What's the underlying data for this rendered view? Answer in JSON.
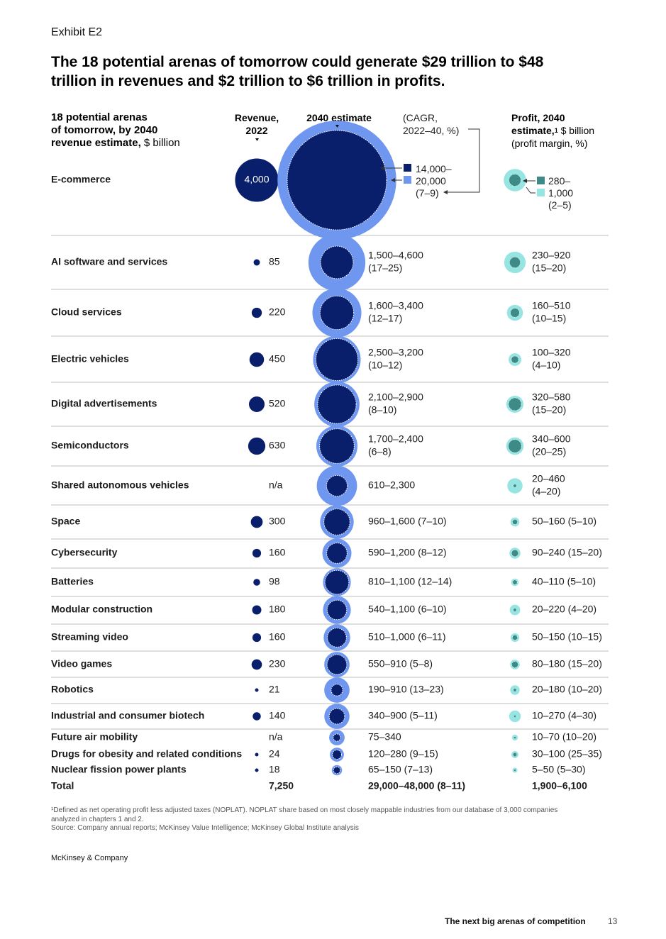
{
  "exhibit_label": "Exhibit E2",
  "title": "The 18 potential arenas of tomorrow could generate $29 trillion to $48 trillion in revenues and $2 trillion to $6 trillion in profits.",
  "header": {
    "arena_line1": "18 potential arenas",
    "arena_line2": "of tomorrow, by 2040",
    "arena_line3_bold": "revenue estimate,",
    "arena_line3_unit": "$ billion",
    "revenue_line1": "Revenue,",
    "revenue_line2": "2022",
    "estimate": "2040 estimate",
    "cagr_line1": "(CAGR,",
    "cagr_line2": "2022–40, %)",
    "profit_line1": "Profit, 2040",
    "profit_line2": "estimate,",
    "profit_sup": "1",
    "profit_unit": "$ billion",
    "profit_line3": "(profit margin, %)"
  },
  "legend": {
    "rev_low": "14,000–",
    "rev_high": "20,000",
    "rev_cagr": "(7–9)",
    "profit_low": "280–",
    "profit_high": "1,000",
    "profit_margin": "(2–5)"
  },
  "colors": {
    "navy": "#0a1f6b",
    "blue": "#6f97f0",
    "teal_dark": "#3e8a87",
    "teal_light": "#96e5e3",
    "rule": "#bdbdbd"
  },
  "chart_data": {
    "type": "bubble-table",
    "title": "The 18 potential arenas of tomorrow could generate $29 trillion to $48 trillion in revenues and $2 trillion to $6 trillion in profits.",
    "columns": [
      "18 potential arenas of tomorrow, by 2040 revenue estimate, $ billion",
      "Revenue, 2022",
      "2040 estimate (CAGR, 2022–40, %)",
      "Profit, 2040 estimate, $ billion (profit margin, %)"
    ],
    "rows": [
      {
        "arena": "E-commerce",
        "revenue_2022": 4000,
        "revenue_2022_label": "4,000",
        "rev_low": 14000,
        "rev_high": 20000,
        "estimate_label": "",
        "profit_low": 280,
        "profit_high": 1000,
        "profit_label": ""
      },
      {
        "arena": "AI software and services",
        "revenue_2022": 85,
        "revenue_2022_label": "85",
        "rev_low": 1500,
        "rev_high": 4600,
        "estimate_label": "1,500–4,600",
        "estimate_label2": "(17–25)",
        "profit_low": 230,
        "profit_high": 920,
        "profit_label": "230–920",
        "profit_label2": "(15–20)"
      },
      {
        "arena": "Cloud services",
        "revenue_2022": 220,
        "revenue_2022_label": "220",
        "rev_low": 1600,
        "rev_high": 3400,
        "estimate_label": "1,600–3,400",
        "estimate_label2": "(12–17)",
        "profit_low": 160,
        "profit_high": 510,
        "profit_label": "160–510",
        "profit_label2": "(10–15)"
      },
      {
        "arena": "Electric vehicles",
        "revenue_2022": 450,
        "revenue_2022_label": "450",
        "rev_low": 2500,
        "rev_high": 3200,
        "estimate_label": "2,500–3,200",
        "estimate_label2": "(10–12)",
        "profit_low": 100,
        "profit_high": 320,
        "profit_label": "100–320",
        "profit_label2": "(4–10)"
      },
      {
        "arena": "Digital advertisements",
        "revenue_2022": 520,
        "revenue_2022_label": "520",
        "rev_low": 2100,
        "rev_high": 2900,
        "estimate_label": "2,100–2,900",
        "estimate_label2": "(8–10)",
        "profit_low": 320,
        "profit_high": 580,
        "profit_label": "320–580",
        "profit_label2": "(15–20)"
      },
      {
        "arena": "Semiconductors",
        "revenue_2022": 630,
        "revenue_2022_label": "630",
        "rev_low": 1700,
        "rev_high": 2400,
        "estimate_label": "1,700–2,400",
        "estimate_label2": "(6–8)",
        "profit_low": 340,
        "profit_high": 600,
        "profit_label": "340–600",
        "profit_label2": "(20–25)"
      },
      {
        "arena": "Shared autonomous vehicles",
        "revenue_2022": null,
        "revenue_2022_label": "n/a",
        "rev_low": 610,
        "rev_high": 2300,
        "estimate_label": "610–2,300",
        "profit_low": 20,
        "profit_high": 460,
        "profit_label": "20–460",
        "profit_label2": "(4–20)"
      },
      {
        "arena": "Space",
        "revenue_2022": 300,
        "revenue_2022_label": "300",
        "rev_low": 960,
        "rev_high": 1600,
        "estimate_label": "960–1,600 (7–10)",
        "profit_low": 50,
        "profit_high": 160,
        "profit_label": "50–160 (5–10)"
      },
      {
        "arena": "Cybersecurity",
        "revenue_2022": 160,
        "revenue_2022_label": "160",
        "rev_low": 590,
        "rev_high": 1200,
        "estimate_label": "590–1,200 (8–12)",
        "profit_low": 90,
        "profit_high": 240,
        "profit_label": "90–240 (15–20)"
      },
      {
        "arena": "Batteries",
        "revenue_2022": 98,
        "revenue_2022_label": "98",
        "rev_low": 810,
        "rev_high": 1100,
        "estimate_label": "810–1,100 (12–14)",
        "profit_low": 40,
        "profit_high": 110,
        "profit_label": "40–110 (5–10)"
      },
      {
        "arena": "Modular construction",
        "revenue_2022": 180,
        "revenue_2022_label": "180",
        "rev_low": 540,
        "rev_high": 1100,
        "estimate_label": "540–1,100 (6–10)",
        "profit_low": 20,
        "profit_high": 220,
        "profit_label": "20–220 (4–20)"
      },
      {
        "arena": "Streaming video",
        "revenue_2022": 160,
        "revenue_2022_label": "160",
        "rev_low": 510,
        "rev_high": 1000,
        "estimate_label": "510–1,000 (6–11)",
        "profit_low": 50,
        "profit_high": 150,
        "profit_label": "50–150 (10–15)"
      },
      {
        "arena": "Video games",
        "revenue_2022": 230,
        "revenue_2022_label": "230",
        "rev_low": 550,
        "rev_high": 910,
        "estimate_label": "550–910 (5–8)",
        "profit_low": 80,
        "profit_high": 180,
        "profit_label": "80–180 (15–20)"
      },
      {
        "arena": "Robotics",
        "revenue_2022": 21,
        "revenue_2022_label": "21",
        "rev_low": 190,
        "rev_high": 910,
        "estimate_label": "190–910 (13–23)",
        "profit_low": 20,
        "profit_high": 180,
        "profit_label": "20–180 (10–20)"
      },
      {
        "arena": "Industrial and consumer biotech",
        "revenue_2022": 140,
        "revenue_2022_label": "140",
        "rev_low": 340,
        "rev_high": 900,
        "estimate_label": "340–900 (5–11)",
        "profit_low": 10,
        "profit_high": 270,
        "profit_label": "10–270 (4–30)"
      },
      {
        "arena": "Future air mobility",
        "revenue_2022": null,
        "revenue_2022_label": "n/a",
        "rev_low": 75,
        "rev_high": 340,
        "estimate_label": "75–340",
        "profit_low": 10,
        "profit_high": 70,
        "profit_label": "10–70 (10–20)"
      },
      {
        "arena": "Drugs for obesity and related conditions",
        "revenue_2022": 24,
        "revenue_2022_label": "24",
        "rev_low": 120,
        "rev_high": 280,
        "estimate_label": "120–280 (9–15)",
        "profit_low": 30,
        "profit_high": 100,
        "profit_label": "30–100 (25–35)"
      },
      {
        "arena": "Nuclear fission power plants",
        "revenue_2022": 18,
        "revenue_2022_label": "18",
        "rev_low": 65,
        "rev_high": 150,
        "estimate_label": "65–150 (7–13)",
        "profit_low": 5,
        "profit_high": 50,
        "profit_label": "5–50 (5–30)"
      }
    ],
    "total": {
      "arena": "Total",
      "revenue_2022_label": "7,250",
      "estimate_label": "29,000–48,000 (8–11)",
      "profit_label": "1,900–6,100"
    }
  },
  "footnote_line1": "¹Defined as net operating profit less adjusted taxes (NOPLAT). NOPLAT share based on most closely mappable industries from our database of 3,000 companies",
  "footnote_line2": "analyzed in chapters 1 and 2.",
  "source": "Source: Company annual reports; McKinsey Value Intelligence; McKinsey Global Institute analysis",
  "brand": "McKinsey & Company",
  "running_title": "The next big arenas of competition",
  "page_number": "13"
}
